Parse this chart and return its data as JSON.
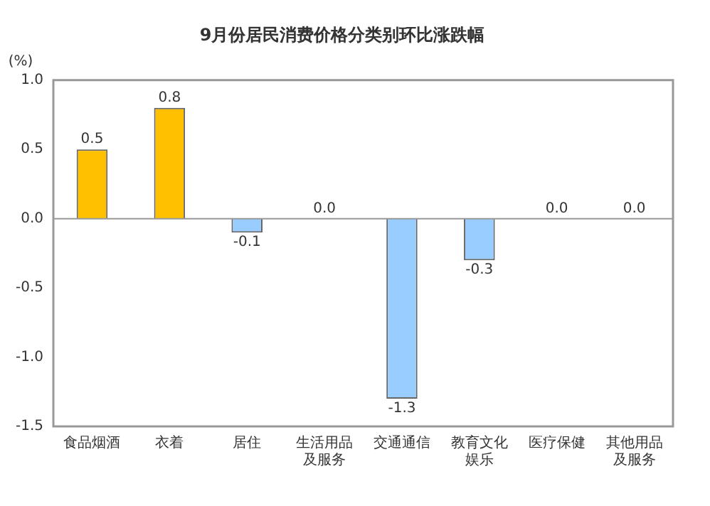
{
  "chart_data": {
    "type": "bar",
    "title": "9月份居民消费价格分类别环比涨跌幅",
    "ylabel": "(%)",
    "categories": [
      "食品烟酒",
      "衣着",
      "居住",
      "生活用品及服务",
      "交通通信",
      "教育文化娱乐",
      "医疗保健",
      "其他用品及服务"
    ],
    "values": [
      0.5,
      0.8,
      -0.1,
      0.0,
      -1.3,
      -0.3,
      0.0,
      0.0
    ],
    "colors": [
      "#ffc000",
      "#ffc000",
      "#99ccff",
      "#ffc000",
      "#99ccff",
      "#99ccff",
      "#ffc000",
      "#ffc000"
    ],
    "ylim": [
      -1.5,
      1.0
    ],
    "yticks": [
      {
        "value": 1.0,
        "label": "1.0"
      },
      {
        "value": 0.5,
        "label": "0.5"
      },
      {
        "value": 0.0,
        "label": "0.0"
      },
      {
        "value": -0.5,
        "label": "-0.5"
      },
      {
        "value": -1.0,
        "label": "-1.0"
      },
      {
        "value": -1.5,
        "label": "-1.5"
      }
    ],
    "value_labels": [
      "0.5",
      "0.8",
      "-0.1",
      "0.0",
      "-1.3",
      "-0.3",
      "0.0",
      "0.0"
    ],
    "legend": false
  }
}
